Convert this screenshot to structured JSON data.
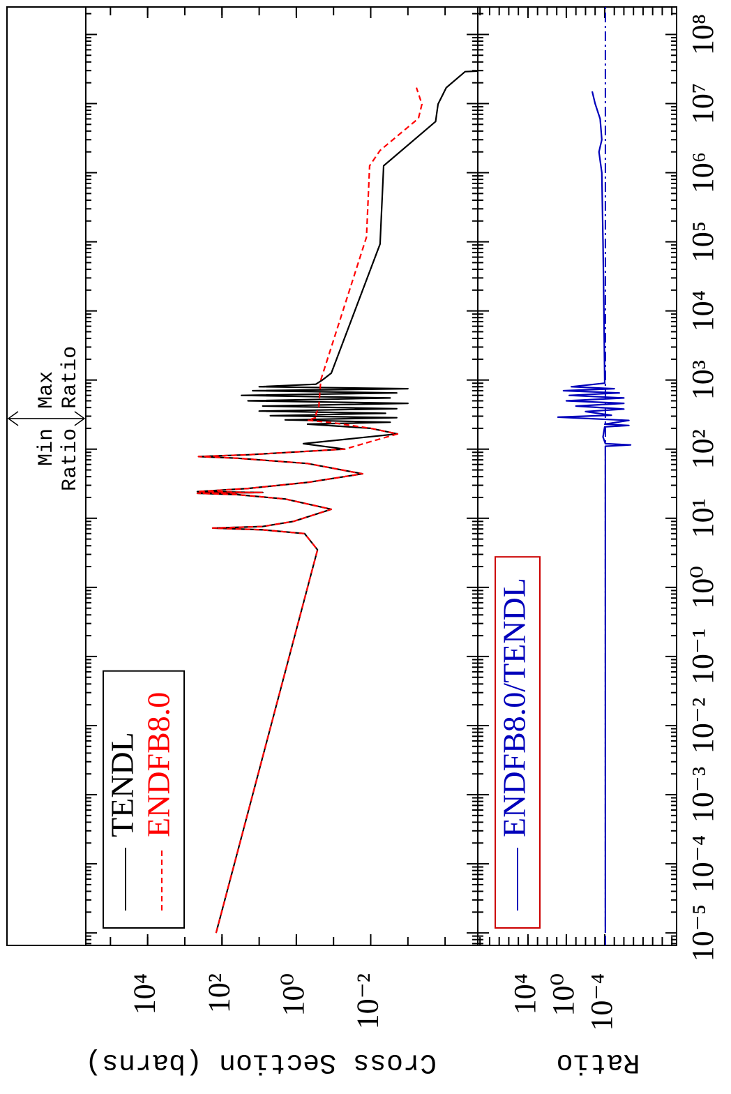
{
  "chart_data": [
    {
      "type": "line",
      "ylabel": "Cross Section (barns)",
      "log_x": true,
      "log_y": true,
      "minor_ticks": true,
      "legend": "upper left",
      "xlim": [
        6.6e-06,
        250000000.0
      ],
      "ylim": [
        1.32e-05,
        460000.0
      ],
      "yticks": [
        {
          "value": 10000,
          "label": "10⁴"
        },
        {
          "value": 100,
          "label": "10²"
        },
        {
          "value": 1,
          "label": "10⁰"
        },
        {
          "value": 0.01,
          "label": "10⁻²"
        }
      ],
      "ratio_marker": {
        "x": 277,
        "min_label": [
          "Min",
          "Ratio"
        ],
        "max_label": [
          "Max",
          "Ratio"
        ]
      },
      "series": [
        {
          "name": "TENDL",
          "color": "#000000",
          "dash": false,
          "x": [
            1e-05,
            3.5,
            6.0,
            6.8,
            7.2,
            7.6,
            9,
            13.5,
            19,
            22,
            23,
            23.6,
            24.3,
            27,
            33,
            44,
            62,
            74,
            78,
            83,
            100,
            120,
            166,
            200,
            230,
            245,
            265,
            285,
            305,
            330,
            355,
            385,
            420,
            460,
            500,
            550,
            600,
            650,
            700,
            750,
            800,
            870,
            1000,
            1260,
            93000,
            1260000,
            5500000,
            9800000,
            17000000,
            29000000,
            29500000
          ],
          "values": [
            144,
            0.27,
            0.6,
            8,
            178,
            8,
            1.2,
            0.115,
            2,
            40,
            460,
            8,
            460,
            20,
            0.5,
            0.0166,
            0.5,
            40,
            426,
            20,
            0.05,
            0.65,
            0.0019,
            0.01,
            0.5,
            0.003,
            2,
            0.002,
            5,
            0.004,
            10,
            0.002,
            8,
            0.001,
            20,
            0.003,
            30,
            0.002,
            15,
            0.001,
            10,
            0.3,
            0.2,
            0.115,
            0.0056,
            0.0045,
            0.00018,
            0.000155,
            9.3e-05,
            2.9e-05,
            1.3e-05
          ]
        },
        {
          "name": "ENDFB8.0",
          "color": "#ff0000",
          "dash": true,
          "x": [
            1e-05,
            3.5,
            6.0,
            6.8,
            7.2,
            7.6,
            9,
            13.5,
            19,
            22,
            23,
            23.6,
            24.3,
            27,
            33,
            44,
            62,
            74,
            78,
            83,
            100,
            166,
            200,
            240,
            262,
            290,
            320,
            400,
            1000,
            117000,
            1260000,
            2100000,
            6100000,
            9800000,
            17000000
          ],
          "values": [
            144,
            0.27,
            0.6,
            8,
            178,
            8,
            1.2,
            0.115,
            2,
            40,
            460,
            8,
            460,
            20,
            0.5,
            0.0166,
            0.5,
            40,
            426,
            20,
            0.05,
            0.0019,
            0.01,
            0.1,
            0.5,
            0.27,
            0.3,
            0.25,
            0.22,
            0.013,
            0.0107,
            0.0056,
            0.00052,
            0.00042,
            0.00059
          ]
        }
      ]
    },
    {
      "type": "line",
      "ylabel": "Ratio",
      "log_x": true,
      "log_y": true,
      "minor_ticks": true,
      "legend": "upper left",
      "legend_border": "#cc0000",
      "xlim": [
        6.6e-06,
        250000000.0
      ],
      "ylim": [
        3.2e-12,
        1700000000.0
      ],
      "xticks": [
        {
          "value": 1e-05,
          "label": "10⁻⁵"
        },
        {
          "value": 0.0001,
          "label": "10⁻⁴"
        },
        {
          "value": 0.001,
          "label": "10⁻³"
        },
        {
          "value": 0.01,
          "label": "10⁻²"
        },
        {
          "value": 0.1,
          "label": "10⁻¹"
        },
        {
          "value": 1,
          "label": "10⁰"
        },
        {
          "value": 10,
          "label": "10¹"
        },
        {
          "value": 100,
          "label": "10²"
        },
        {
          "value": 1000,
          "label": "10³"
        },
        {
          "value": 10000,
          "label": "10⁴"
        },
        {
          "value": 100000,
          "label": "10⁵"
        },
        {
          "value": 1000000,
          "label": "10⁶"
        },
        {
          "value": 10000000,
          "label": "10⁷"
        },
        {
          "value": 100000000,
          "label": "10⁸"
        }
      ],
      "yticks": [
        {
          "value": 10000,
          "label": "10⁴"
        },
        {
          "value": 1,
          "label": "10⁰"
        },
        {
          "value": 0.0001,
          "label": "10⁻⁴"
        }
      ],
      "reference": {
        "value": 8.5e-05,
        "color": "#0000bb"
      },
      "series": [
        {
          "name": "ENDFB8.0/TENDL",
          "color": "#0000bb",
          "dash": false,
          "x": [
            1e-05,
            110,
            115,
            120,
            150,
            210,
            220,
            230,
            260,
            290,
            310,
            350,
            380,
            420,
            460,
            500,
            550,
            600,
            650,
            700,
            750,
            800,
            900,
            1000,
            10000,
            100000,
            1000000,
            2000000,
            3000000,
            6000000,
            10000000,
            15000000
          ],
          "values": [
            8.5e-05,
            8.5e-05,
            2e-07,
            8.5e-05,
            0.00015,
            0.0001,
            3e-07,
            0.0001,
            3e-07,
            7.4,
            2e-05,
            0.01,
            1e-06,
            0.1,
            1e-06,
            1,
            1e-06,
            0.5,
            3e-06,
            2,
            1e-05,
            0.3,
            0.0001,
            0.0001,
            0.00012,
            0.00015,
            0.0002,
            0.0004,
            0.0002,
            0.0003,
            0.001,
            0.002
          ]
        }
      ]
    }
  ]
}
